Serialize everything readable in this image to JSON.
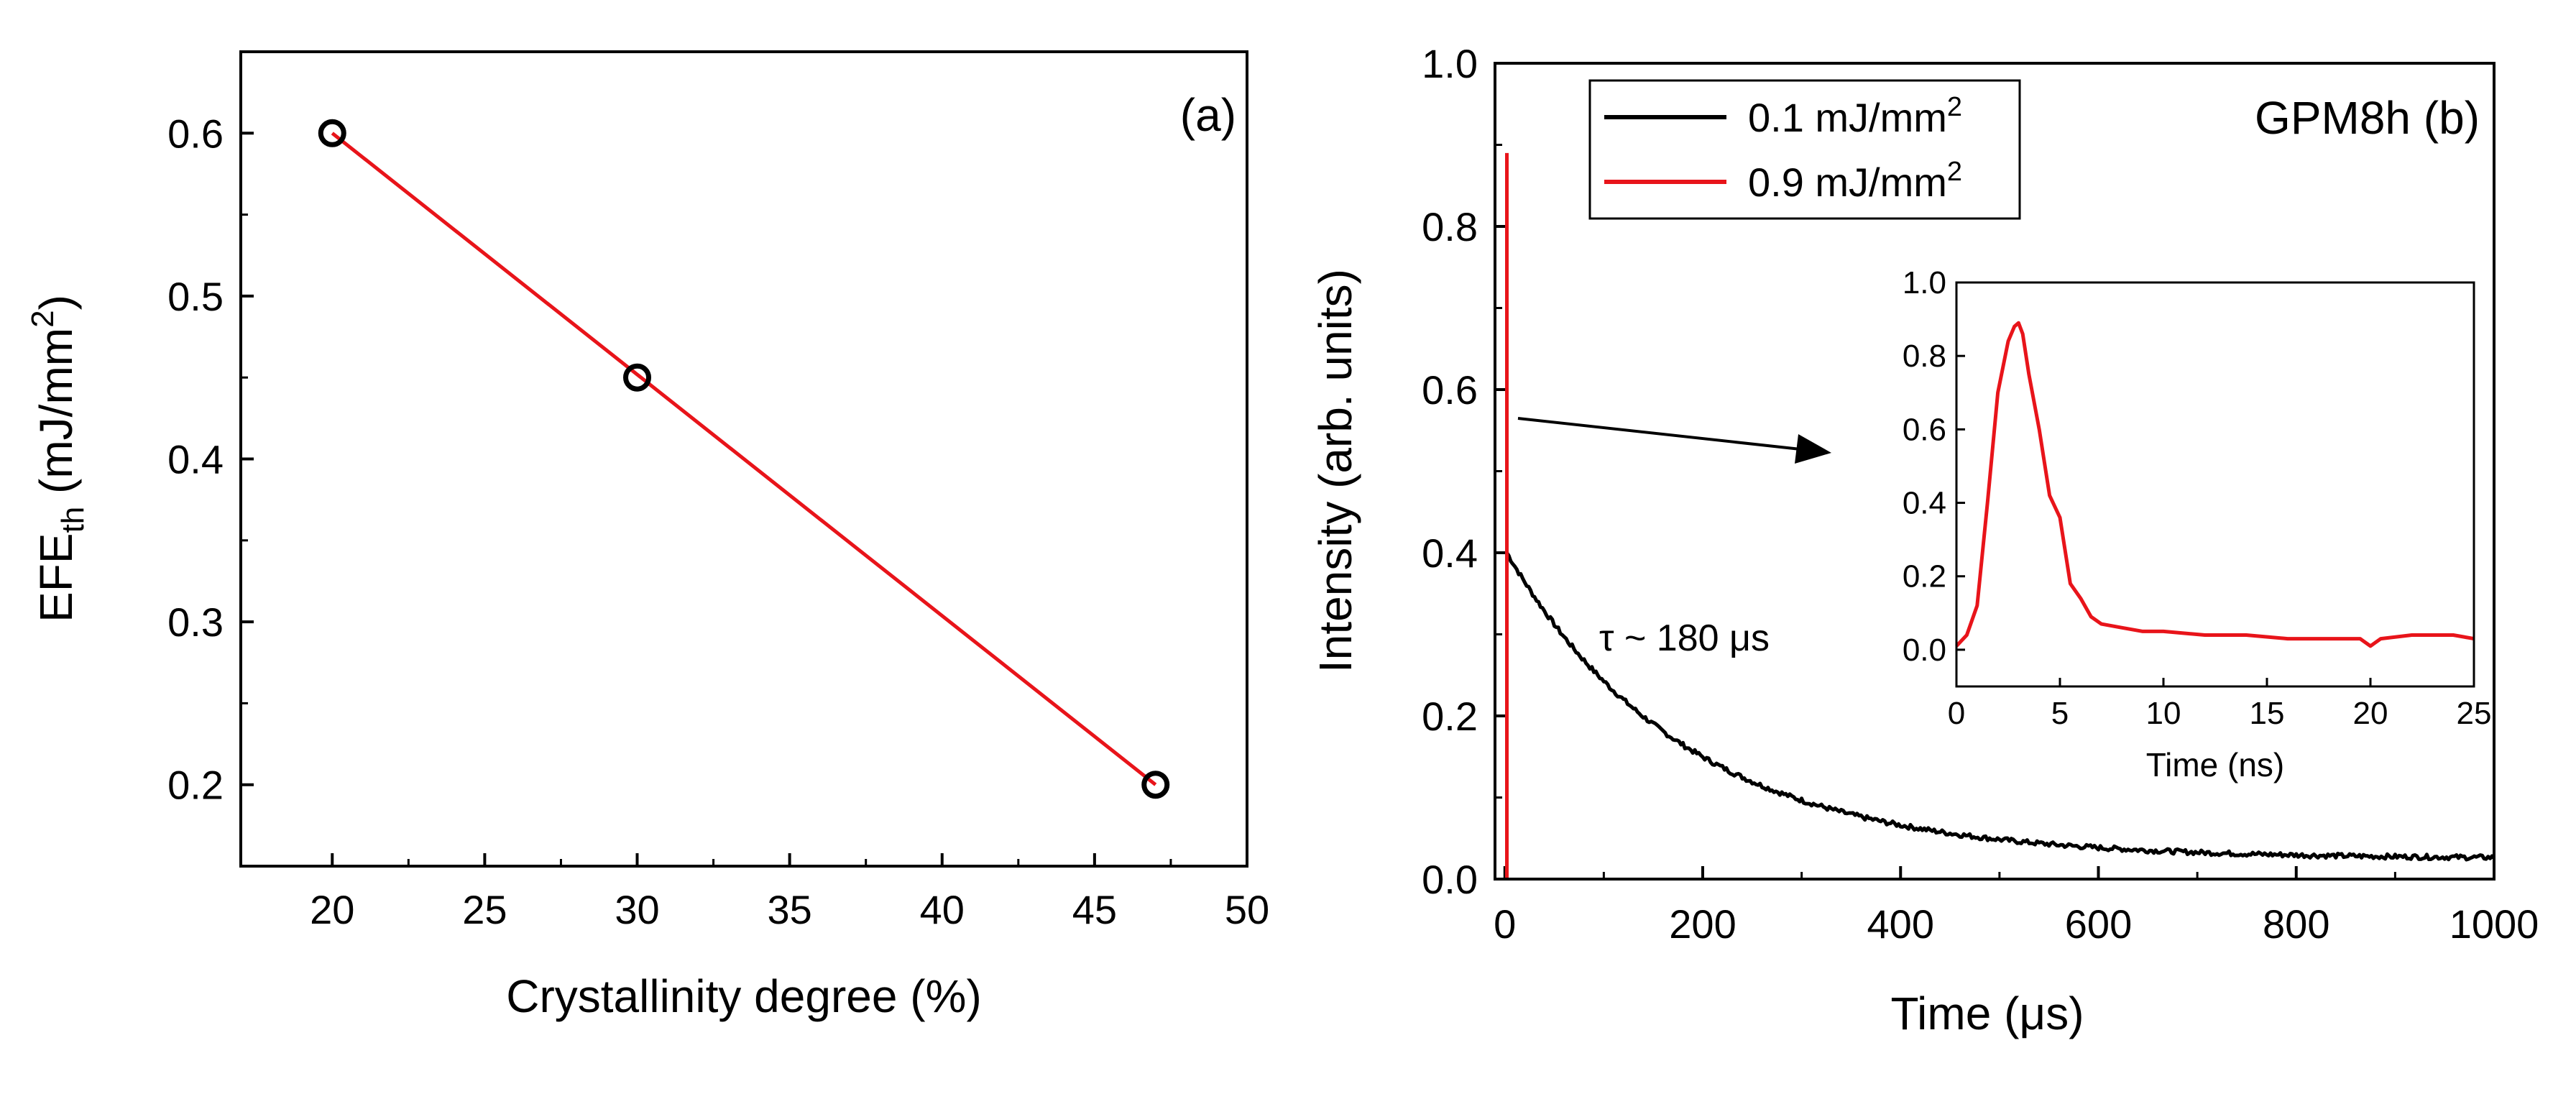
{
  "chart_data": [
    {
      "panel": "a",
      "type": "scatter",
      "panel_label": "(a)",
      "xlabel": "Crystallinity degree (%)",
      "ylabel": {
        "main": "EFE",
        "sub": "th",
        "pre_sup": " (mJ/mm",
        "sup": "2",
        "post": ")"
      },
      "xlim": [
        17,
        50
      ],
      "ylim": [
        0.15,
        0.65
      ],
      "xticks": [
        20,
        25,
        30,
        35,
        40,
        45,
        50
      ],
      "yticks": [
        0.2,
        0.3,
        0.4,
        0.5,
        0.6
      ],
      "points": [
        {
          "x": 20,
          "y": 0.6
        },
        {
          "x": 30,
          "y": 0.45
        },
        {
          "x": 47,
          "y": 0.2
        }
      ],
      "fit_line": {
        "x": [
          20,
          47
        ],
        "y": [
          0.6,
          0.2
        ],
        "color": "#e8141a"
      },
      "marker_color": "#000000"
    },
    {
      "panel": "b",
      "type": "line",
      "panel_label": "GPM8h (b)",
      "xlabel": "Time (μs)",
      "ylabel": "Intensity (arb. units)",
      "xlim": [
        -10,
        1000
      ],
      "ylim": [
        0,
        1.0
      ],
      "xticks": [
        0,
        200,
        400,
        600,
        800,
        1000
      ],
      "yticks": [
        "0.0",
        "0.2",
        "0.4",
        "0.6",
        "0.8",
        "1.0"
      ],
      "series": [
        {
          "name": "0.1 mJ/mm",
          "name_sup": "2",
          "color": "#000000",
          "model": "exponential_decay",
          "amplitude": 0.375,
          "tau": 180,
          "offset": 0.025,
          "start_x": 2,
          "end_x": 1000
        },
        {
          "name": "0.9 mJ/mm",
          "name_sup": "2",
          "color": "#e8141a",
          "x": [
            2,
            2
          ],
          "y": [
            0,
            0.89
          ]
        }
      ],
      "annotation": "τ ~ 180 μs",
      "inset": {
        "type": "line",
        "xlabel": "Time (ns)",
        "xlim": [
          0,
          25
        ],
        "ylim": [
          -0.1,
          1.0
        ],
        "xticks": [
          0,
          5,
          10,
          15,
          20,
          25
        ],
        "yticks": [
          "0.0",
          "0.2",
          "0.4",
          "0.6",
          "0.8",
          "1.0"
        ],
        "color": "#e8141a",
        "x": [
          0,
          0.5,
          1,
          1.5,
          2,
          2.5,
          2.8,
          3,
          3.2,
          3.5,
          4,
          4.5,
          5,
          5.5,
          6,
          6.5,
          7,
          8,
          9,
          10,
          12,
          14,
          16,
          18,
          19.5,
          20,
          20.5,
          22,
          24,
          25
        ],
        "y": [
          0.01,
          0.04,
          0.12,
          0.4,
          0.7,
          0.84,
          0.88,
          0.89,
          0.86,
          0.75,
          0.6,
          0.42,
          0.36,
          0.18,
          0.14,
          0.09,
          0.07,
          0.06,
          0.05,
          0.05,
          0.04,
          0.04,
          0.03,
          0.03,
          0.03,
          0.01,
          0.03,
          0.04,
          0.04,
          0.03
        ]
      }
    }
  ]
}
